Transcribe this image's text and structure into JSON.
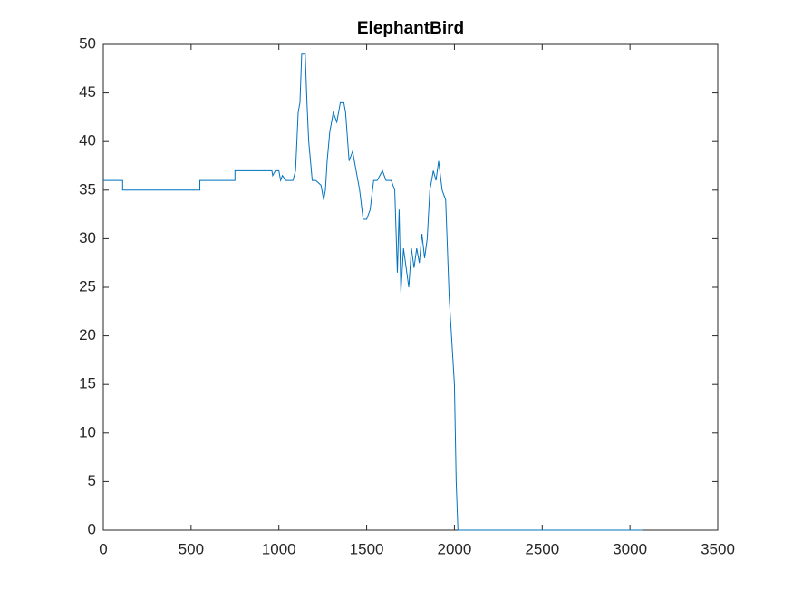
{
  "chart_data": {
    "type": "line",
    "title": "ElephantBird",
    "series": [
      {
        "color": "#0072bd",
        "x": [
          0,
          110,
          110,
          550,
          550,
          750,
          750,
          960,
          965,
          980,
          990,
          1000,
          1010,
          1020,
          1040,
          1060,
          1080,
          1095,
          1110,
          1120,
          1130,
          1150,
          1160,
          1170,
          1190,
          1210,
          1240,
          1255,
          1265,
          1275,
          1290,
          1310,
          1330,
          1350,
          1370,
          1380,
          1400,
          1420,
          1440,
          1460,
          1480,
          1500,
          1520,
          1540,
          1560,
          1590,
          1610,
          1640,
          1660,
          1675,
          1685,
          1695,
          1710,
          1725,
          1740,
          1755,
          1770,
          1785,
          1800,
          1815,
          1830,
          1845,
          1860,
          1880,
          1895,
          1910,
          1930,
          1950,
          1970,
          1990,
          2000,
          2010,
          2020,
          2030,
          2040,
          2050,
          3070
        ],
        "values": [
          36,
          36,
          35,
          35,
          36,
          36,
          37,
          37,
          36.5,
          37,
          37,
          37,
          36,
          36.5,
          36,
          36,
          36,
          37,
          43,
          44,
          49,
          49,
          44,
          40,
          36,
          36,
          35.5,
          34,
          35,
          38,
          41,
          43,
          42,
          44,
          44,
          43,
          38,
          39,
          37,
          35,
          32,
          32,
          33,
          36,
          36,
          37,
          36,
          36,
          35,
          26.5,
          33,
          24.5,
          29,
          27,
          25,
          29,
          27,
          29,
          27.5,
          30.5,
          28,
          30,
          35,
          37,
          36,
          38,
          35,
          34,
          24,
          18,
          15,
          5,
          0,
          0,
          0,
          0,
          0
        ]
      }
    ],
    "xlim": [
      0,
      3500
    ],
    "xticks": [
      0,
      500,
      1000,
      1500,
      2000,
      2500,
      3000,
      3500
    ],
    "ylim": [
      0,
      50
    ],
    "yticks": [
      0,
      5,
      10,
      15,
      20,
      25,
      30,
      35,
      40,
      45,
      50
    ]
  }
}
